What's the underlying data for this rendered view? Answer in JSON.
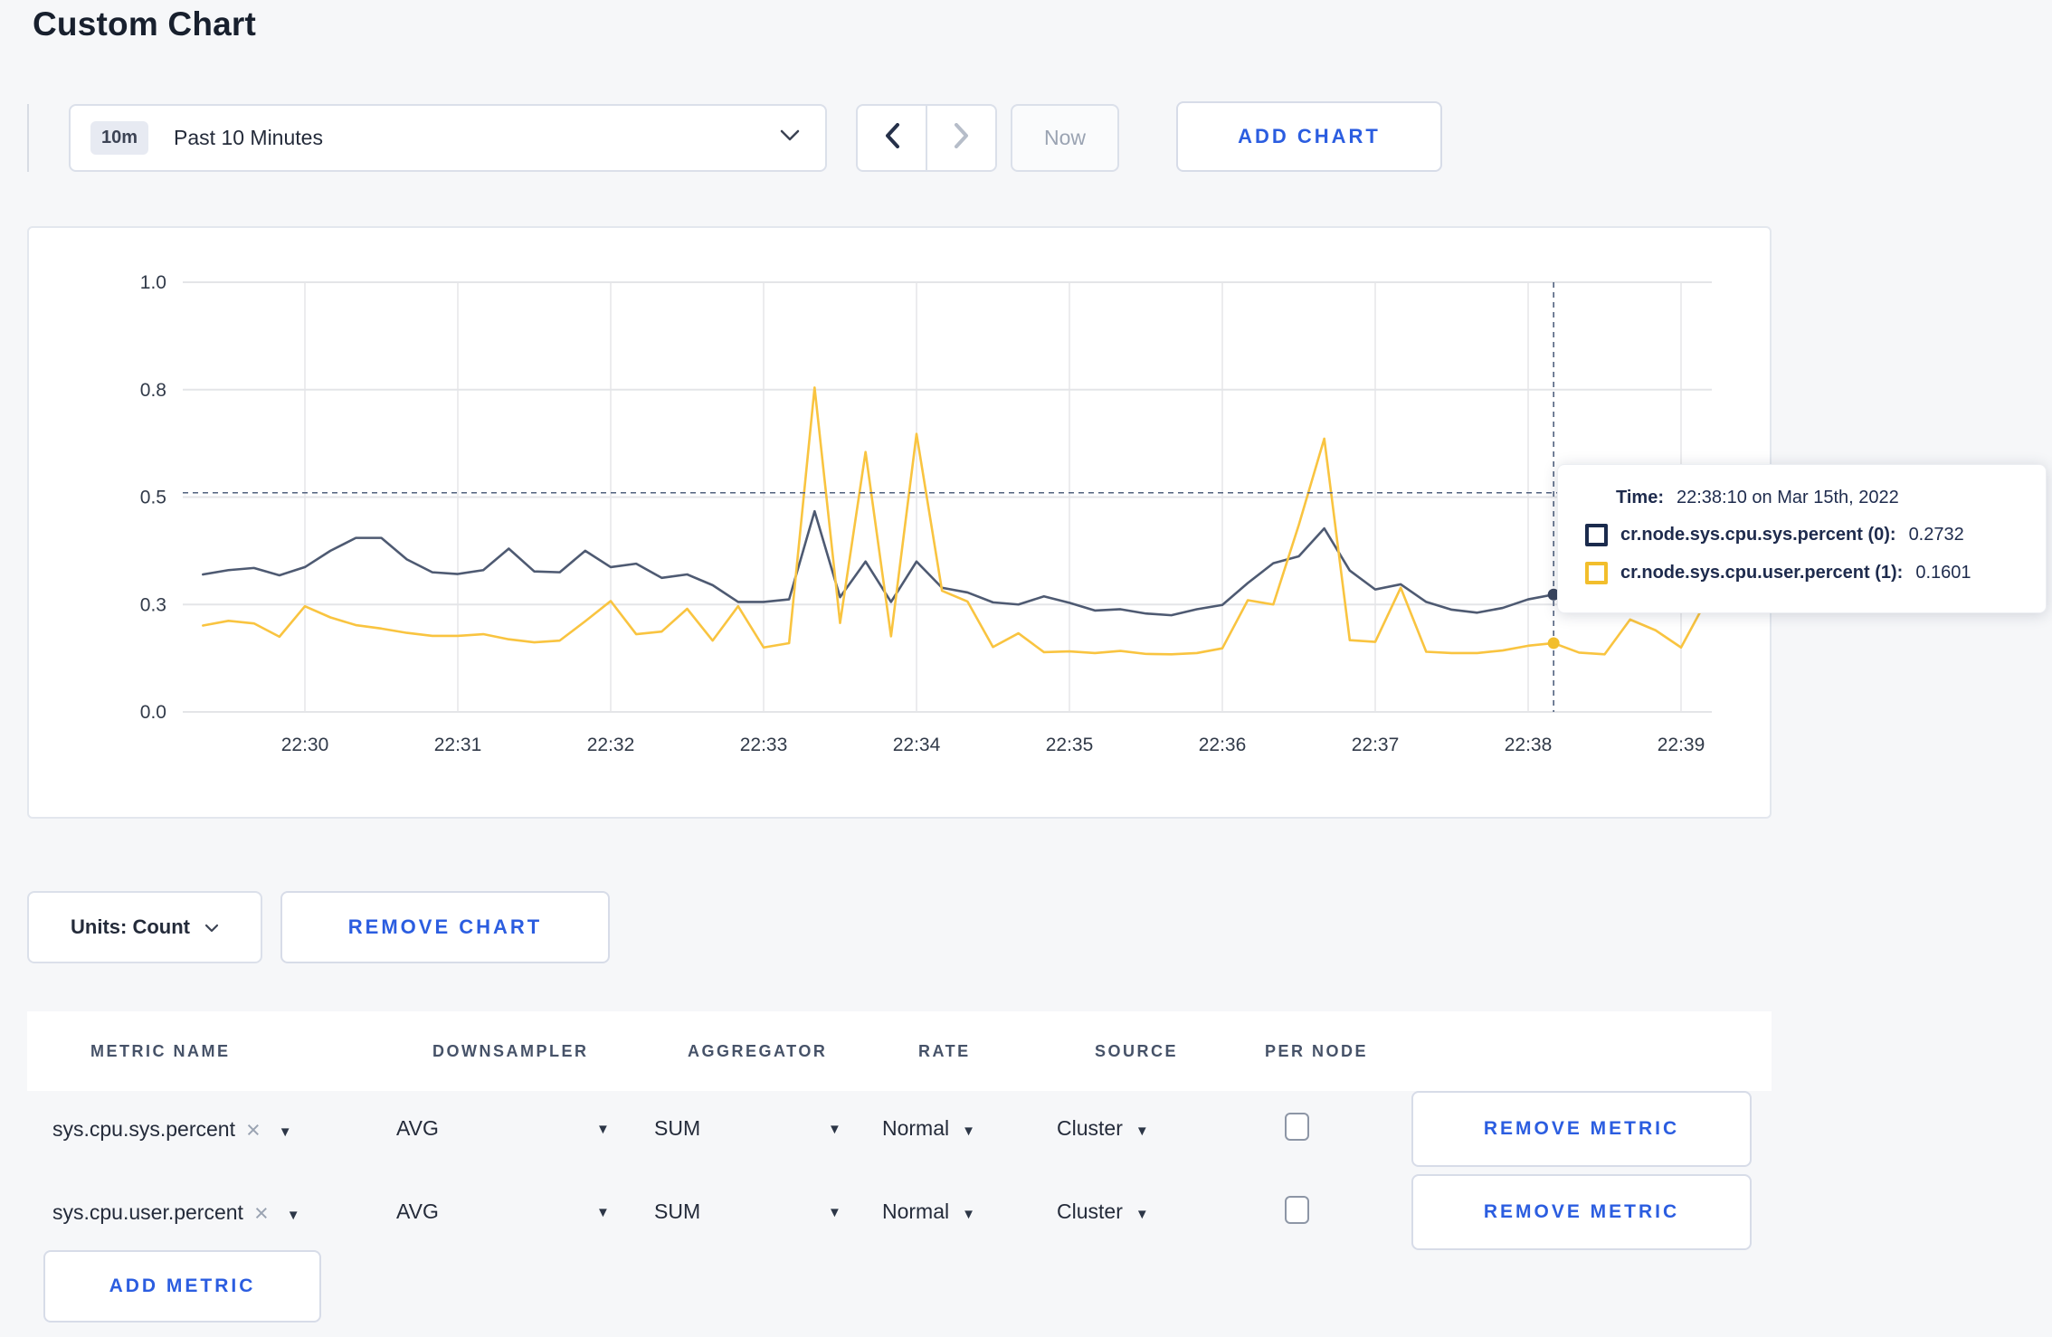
{
  "page": {
    "title": "Custom Chart"
  },
  "toolbar": {
    "time_window_badge": "10m",
    "time_window_label": "Past 10 Minutes",
    "now_label": "Now",
    "add_chart_label": "ADD CHART"
  },
  "icons": {
    "dropdown_arrow": "▼",
    "remove_x": "×"
  },
  "tooltip": {
    "time_label": "Time:",
    "time_value": "22:38:10 on Mar 15th, 2022",
    "series": [
      {
        "name": "cr.node.sys.cpu.sys.percent (0):",
        "value": "0.2732",
        "color": "#1b2b4d"
      },
      {
        "name": "cr.node.sys.cpu.user.percent (1):",
        "value": "0.1601",
        "color": "#f2be2c"
      }
    ]
  },
  "chart_data": {
    "type": "line",
    "title": "",
    "xlabel": "",
    "ylabel": "",
    "ylim": [
      0,
      1
    ],
    "grid": true,
    "y_ticks": [
      0,
      0.25,
      0.5,
      0.75,
      1.0
    ],
    "y_tick_labels": [
      "0.0",
      "0.3",
      "0.5",
      "0.8",
      "1.0"
    ],
    "x_tick_labels": [
      "22:30",
      "22:31",
      "22:32",
      "22:33",
      "22:34",
      "22:35",
      "22:36",
      "22:37",
      "22:38",
      "22:39"
    ],
    "x": [
      "22:29:20",
      "22:29:30",
      "22:29:40",
      "22:29:50",
      "22:30:00",
      "22:30:10",
      "22:30:20",
      "22:30:30",
      "22:30:40",
      "22:30:50",
      "22:31:00",
      "22:31:10",
      "22:31:20",
      "22:31:30",
      "22:31:40",
      "22:31:50",
      "22:32:00",
      "22:32:10",
      "22:32:20",
      "22:32:30",
      "22:32:40",
      "22:32:50",
      "22:33:00",
      "22:33:10",
      "22:33:20",
      "22:33:30",
      "22:33:40",
      "22:33:50",
      "22:34:00",
      "22:34:10",
      "22:34:20",
      "22:34:30",
      "22:34:40",
      "22:34:50",
      "22:35:00",
      "22:35:10",
      "22:35:20",
      "22:35:30",
      "22:35:40",
      "22:35:50",
      "22:36:00",
      "22:36:10",
      "22:36:20",
      "22:36:30",
      "22:36:40",
      "22:36:50",
      "22:37:00",
      "22:37:10",
      "22:37:20",
      "22:37:30",
      "22:37:40",
      "22:37:50",
      "22:38:00",
      "22:38:10",
      "22:38:20",
      "22:38:30",
      "22:38:40",
      "22:38:50",
      "22:39:00",
      "22:39:10"
    ],
    "series": [
      {
        "name": "cr.node.sys.cpu.sys.percent",
        "color": "#4e5a72",
        "marker_color": "#39455e",
        "values": [
          0.32,
          0.33,
          0.335,
          0.318,
          0.337,
          0.375,
          0.405,
          0.405,
          0.355,
          0.325,
          0.321,
          0.33,
          0.38,
          0.327,
          0.325,
          0.375,
          0.337,
          0.345,
          0.312,
          0.32,
          0.295,
          0.256,
          0.256,
          0.262,
          0.467,
          0.267,
          0.35,
          0.256,
          0.35,
          0.289,
          0.278,
          0.255,
          0.25,
          0.269,
          0.254,
          0.236,
          0.239,
          0.229,
          0.225,
          0.239,
          0.249,
          0.3,
          0.346,
          0.362,
          0.427,
          0.329,
          0.285,
          0.297,
          0.256,
          0.238,
          0.231,
          0.242,
          0.262,
          0.2732,
          0.252,
          0.255,
          0.27,
          0.278,
          0.262,
          0.275
        ]
      },
      {
        "name": "cr.node.sys.cpu.user.percent",
        "color": "#f9c440",
        "marker_color": "#f2be2c",
        "values": [
          0.201,
          0.212,
          0.206,
          0.175,
          0.246,
          0.22,
          0.202,
          0.194,
          0.184,
          0.177,
          0.177,
          0.181,
          0.169,
          0.162,
          0.166,
          0.211,
          0.258,
          0.181,
          0.187,
          0.24,
          0.166,
          0.246,
          0.15,
          0.16,
          0.755,
          0.207,
          0.605,
          0.176,
          0.647,
          0.282,
          0.257,
          0.151,
          0.183,
          0.139,
          0.141,
          0.137,
          0.142,
          0.135,
          0.134,
          0.137,
          0.148,
          0.26,
          0.25,
          0.435,
          0.636,
          0.167,
          0.163,
          0.289,
          0.14,
          0.137,
          0.137,
          0.143,
          0.154,
          0.1601,
          0.138,
          0.134,
          0.215,
          0.19,
          0.15,
          0.26
        ]
      }
    ],
    "crosshair": {
      "time": "22:38:10",
      "x_index": 53,
      "y_value": 0.51
    },
    "legend_position": "none"
  },
  "units_bar": {
    "units_label": "Units: Count",
    "remove_chart_label": "REMOVE CHART"
  },
  "metrics_table": {
    "headers": [
      "METRIC NAME",
      "DOWNSAMPLER",
      "AGGREGATOR",
      "RATE",
      "SOURCE",
      "PER NODE"
    ],
    "rows": [
      {
        "metric": "sys.cpu.sys.percent",
        "downsampler": "AVG",
        "aggregator": "SUM",
        "rate": "Normal",
        "source": "Cluster",
        "per_node": false,
        "remove_label": "REMOVE METRIC"
      },
      {
        "metric": "sys.cpu.user.percent",
        "downsampler": "AVG",
        "aggregator": "SUM",
        "rate": "Normal",
        "source": "Cluster",
        "per_node": false,
        "remove_label": "REMOVE METRIC"
      }
    ],
    "add_metric_label": "ADD METRIC"
  }
}
